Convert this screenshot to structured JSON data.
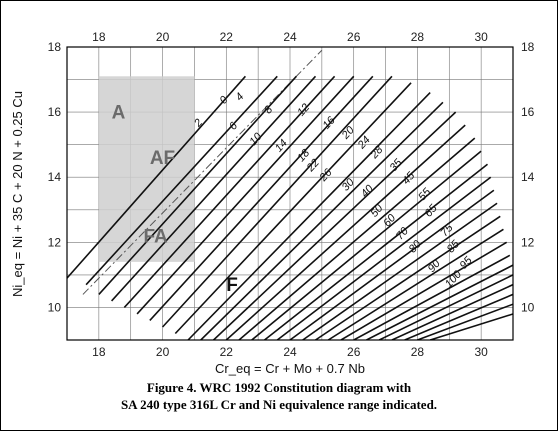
{
  "chart_data": {
    "type": "line",
    "title": "",
    "xlabel": "Cr_eq = Cr + Mo + 0.7 Nb",
    "ylabel": "Ni_eq = Ni + 35 C + 20 N + 0.25 Cu",
    "xlim": [
      17,
      31
    ],
    "ylim": [
      9,
      18
    ],
    "x_ticks": [
      18,
      20,
      22,
      24,
      26,
      28,
      30
    ],
    "y_ticks": [
      10,
      12,
      14,
      16,
      18
    ],
    "grid": true,
    "regions": [
      {
        "label": "A",
        "x": 18.4,
        "y": 15.8
      },
      {
        "label": "AF",
        "x": 19.6,
        "y": 14.4
      },
      {
        "label": "FA",
        "x": 19.4,
        "y": 12.0
      },
      {
        "label": "F",
        "x": 22,
        "y": 10.5
      }
    ],
    "shaded_range": {
      "x": [
        18,
        21
      ],
      "y": [
        11.4,
        17.1
      ]
    },
    "iso_fn_lines": [
      {
        "label": "0",
        "x": [
          17.5,
          25
        ],
        "y": [
          10.4,
          17.9
        ],
        "style": "dash-dot"
      },
      {
        "label": "2",
        "x": [
          17.0,
          22.6
        ],
        "y": [
          10.9,
          17.1
        ]
      },
      {
        "label": "4",
        "x": [
          17.6,
          23.6
        ],
        "y": [
          10.7,
          17.1
        ]
      },
      {
        "label": "6",
        "x": [
          18.0,
          24.2
        ],
        "y": [
          10.4,
          17.1
        ]
      },
      {
        "label": "8",
        "x": [
          18.4,
          24.8
        ],
        "y": [
          10.2,
          17.1
        ]
      },
      {
        "label": "10",
        "x": [
          18.8,
          25.4
        ],
        "y": [
          10.0,
          17.1
        ]
      },
      {
        "label": "12",
        "x": [
          19.2,
          26.0
        ],
        "y": [
          9.8,
          17.1
        ]
      },
      {
        "label": "14",
        "x": [
          19.6,
          26.6
        ],
        "y": [
          9.6,
          17.1
        ]
      },
      {
        "label": "16",
        "x": [
          20.0,
          27.2
        ],
        "y": [
          9.4,
          17.1
        ]
      },
      {
        "label": "18",
        "x": [
          20.4,
          27.8
        ],
        "y": [
          9.2,
          16.9
        ]
      },
      {
        "label": "20",
        "x": [
          20.8,
          28.4
        ],
        "y": [
          9.0,
          16.6
        ]
      },
      {
        "label": "22",
        "x": [
          21.2,
          28.8
        ],
        "y": [
          9.0,
          16.3
        ]
      },
      {
        "label": "24",
        "x": [
          21.6,
          29.2
        ],
        "y": [
          9.0,
          16.0
        ]
      },
      {
        "label": "26",
        "x": [
          22.0,
          29.5
        ],
        "y": [
          9.0,
          15.6
        ]
      },
      {
        "label": "28",
        "x": [
          22.4,
          29.8
        ],
        "y": [
          9.0,
          15.2
        ]
      },
      {
        "label": "30",
        "x": [
          22.8,
          30.0
        ],
        "y": [
          9.0,
          14.8
        ]
      },
      {
        "label": "35",
        "x": [
          23.2,
          30.2
        ],
        "y": [
          9.0,
          14.4
        ]
      },
      {
        "label": "40",
        "x": [
          23.6,
          30.3
        ],
        "y": [
          9.0,
          14.0
        ]
      },
      {
        "label": "45",
        "x": [
          24.0,
          30.4
        ],
        "y": [
          9.0,
          13.6
        ]
      },
      {
        "label": "50",
        "x": [
          24.4,
          30.5
        ],
        "y": [
          9.0,
          13.2
        ]
      },
      {
        "label": "55",
        "x": [
          24.8,
          30.6
        ],
        "y": [
          9.0,
          12.8
        ]
      },
      {
        "label": "60",
        "x": [
          25.2,
          30.7
        ],
        "y": [
          9.0,
          12.4
        ]
      },
      {
        "label": "65",
        "x": [
          25.6,
          30.8
        ],
        "y": [
          9.0,
          12.0
        ]
      },
      {
        "label": "70",
        "x": [
          26.0,
          30.9
        ],
        "y": [
          9.0,
          11.6
        ]
      },
      {
        "label": "75",
        "x": [
          26.4,
          31.0
        ],
        "y": [
          9.0,
          11.3
        ]
      },
      {
        "label": "80",
        "x": [
          26.8,
          31.0
        ],
        "y": [
          9.0,
          11.0
        ]
      },
      {
        "label": "85",
        "x": [
          27.2,
          31.0
        ],
        "y": [
          9.0,
          10.7
        ]
      },
      {
        "label": "90",
        "x": [
          27.6,
          31.0
        ],
        "y": [
          9.0,
          10.4
        ]
      },
      {
        "label": "95",
        "x": [
          28.0,
          31.0
        ],
        "y": [
          9.0,
          10.1
        ]
      },
      {
        "label": "100",
        "x": [
          28.4,
          31.0
        ],
        "y": [
          9.0,
          9.8
        ]
      }
    ],
    "labeled_fn": [
      "0",
      "2",
      "4",
      "6",
      "8",
      "10",
      "12",
      "14",
      "16",
      "18",
      "20",
      "22",
      "24",
      "26",
      "28",
      "30",
      "35",
      "40",
      "45",
      "50",
      "55",
      "60",
      "65",
      "70",
      "75",
      "80",
      "85",
      "90",
      "95",
      "100"
    ],
    "label_points": {
      "0": [
        22.0,
        16.3
      ],
      "2": [
        21.2,
        15.6
      ],
      "4": [
        22.5,
        16.4
      ],
      "6": [
        22.3,
        15.5
      ],
      "8": [
        23.4,
        16.0
      ],
      "10": [
        23.0,
        15.1
      ],
      "12": [
        24.5,
        16.0
      ],
      "14": [
        23.8,
        14.9
      ],
      "16": [
        25.3,
        15.6
      ],
      "18": [
        24.5,
        14.6
      ],
      "20": [
        25.9,
        15.3
      ],
      "22": [
        24.8,
        14.3
      ],
      "24": [
        26.4,
        15.0
      ],
      "26": [
        25.2,
        14.0
      ],
      "28": [
        26.8,
        14.7
      ],
      "30": [
        25.9,
        13.7
      ],
      "35": [
        27.4,
        14.3
      ],
      "40": [
        26.5,
        13.5
      ],
      "45": [
        27.8,
        13.9
      ],
      "50": [
        26.8,
        12.9
      ],
      "55": [
        28.3,
        13.4
      ],
      "60": [
        27.2,
        12.6
      ],
      "65": [
        28.5,
        12.9
      ],
      "70": [
        27.6,
        12.2
      ],
      "75": [
        29.0,
        12.3
      ],
      "80": [
        28.0,
        11.8
      ],
      "85": [
        29.2,
        11.8
      ],
      "90": [
        28.6,
        11.2
      ],
      "95": [
        29.6,
        11.3
      ],
      "100": [
        29.2,
        10.8
      ]
    }
  },
  "caption": {
    "line1": "Figure 4.  WRC 1992 Constitution diagram with",
    "line2": "SA 240 type 316L Cr and Ni equivalence range indicated."
  }
}
